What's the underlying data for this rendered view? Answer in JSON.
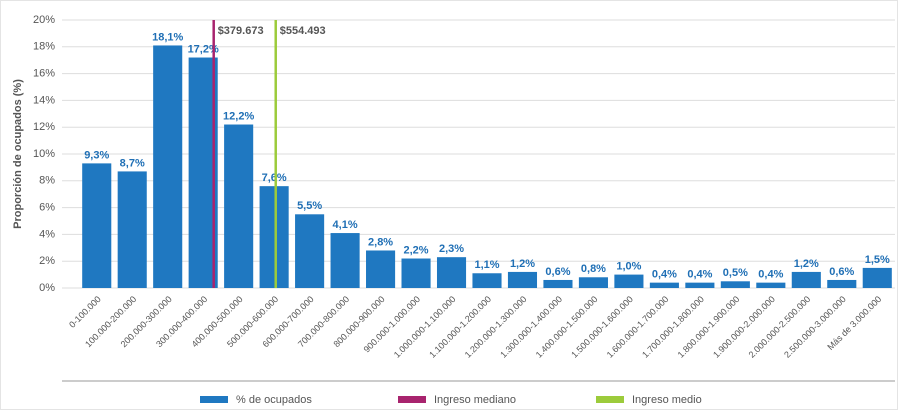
{
  "chart_data": {
    "type": "bar",
    "y_label": "Proporción de ocupados (%)",
    "categories": [
      "0-100.000",
      "100.000-200.000",
      "200.000-300.000",
      "300.000-400.000",
      "400.000-500.000",
      "500.000-600.000",
      "600.000-700.000",
      "700.000-800.000",
      "800.000-900.000",
      "900.000-1.000.000",
      "1.000.000-1.100.000",
      "1.100.000-1.200.000",
      "1.200.000-1.300.000",
      "1.300.000-1.400.000",
      "1.400.000-1.500.000",
      "1.500.000-1.600.000",
      "1.600.000-1.700.000",
      "1.700.000-1.800.000",
      "1.800.000-1.900.000",
      "1.900.000-2.000.000",
      "2.000.000-2.500.000",
      "2.500.000-3.000.000",
      "Más de 3.000.000"
    ],
    "series": [
      {
        "name": "% de ocupados",
        "color": "#1f78c1",
        "values": [
          9.3,
          8.7,
          18.1,
          17.2,
          12.2,
          7.6,
          5.5,
          4.1,
          2.8,
          2.2,
          2.3,
          1.1,
          1.2,
          0.6,
          0.8,
          1.0,
          0.4,
          0.4,
          0.5,
          0.4,
          1.2,
          0.6,
          1.5
        ],
        "value_labels": [
          "9,3%",
          "8,7%",
          "18,1%",
          "17,2%",
          "12,2%",
          "7,6%",
          "5,5%",
          "4,1%",
          "2,8%",
          "2,2%",
          "2,3%",
          "1,1%",
          "1,2%",
          "0,6%",
          "0,8%",
          "1,0%",
          "0,4%",
          "0,4%",
          "0,5%",
          "0,4%",
          "1,2%",
          "0,6%",
          "1,5%"
        ]
      }
    ],
    "reference_lines": [
      {
        "name": "Ingreso mediano",
        "value": 379673,
        "label": "$379.673",
        "color": "#a8246e"
      },
      {
        "name": "Ingreso medio",
        "value": 554493,
        "label": "$554.493",
        "color": "#9ccb3b",
        "label_color": "#4a7a1f"
      }
    ],
    "ylim": [
      0,
      20
    ],
    "yticks": [
      {
        "value": 0,
        "label": "0%"
      },
      {
        "value": 2,
        "label": "2%"
      },
      {
        "value": 4,
        "label": "4%"
      },
      {
        "value": 6,
        "label": "6%"
      },
      {
        "value": 8,
        "label": "8%"
      },
      {
        "value": 10,
        "label": "10%"
      },
      {
        "value": 12,
        "label": "12%"
      },
      {
        "value": 14,
        "label": "14%"
      },
      {
        "value": 16,
        "label": "16%"
      },
      {
        "value": 18,
        "label": "18%"
      },
      {
        "value": 20,
        "label": "20%"
      }
    ],
    "grid": true
  }
}
